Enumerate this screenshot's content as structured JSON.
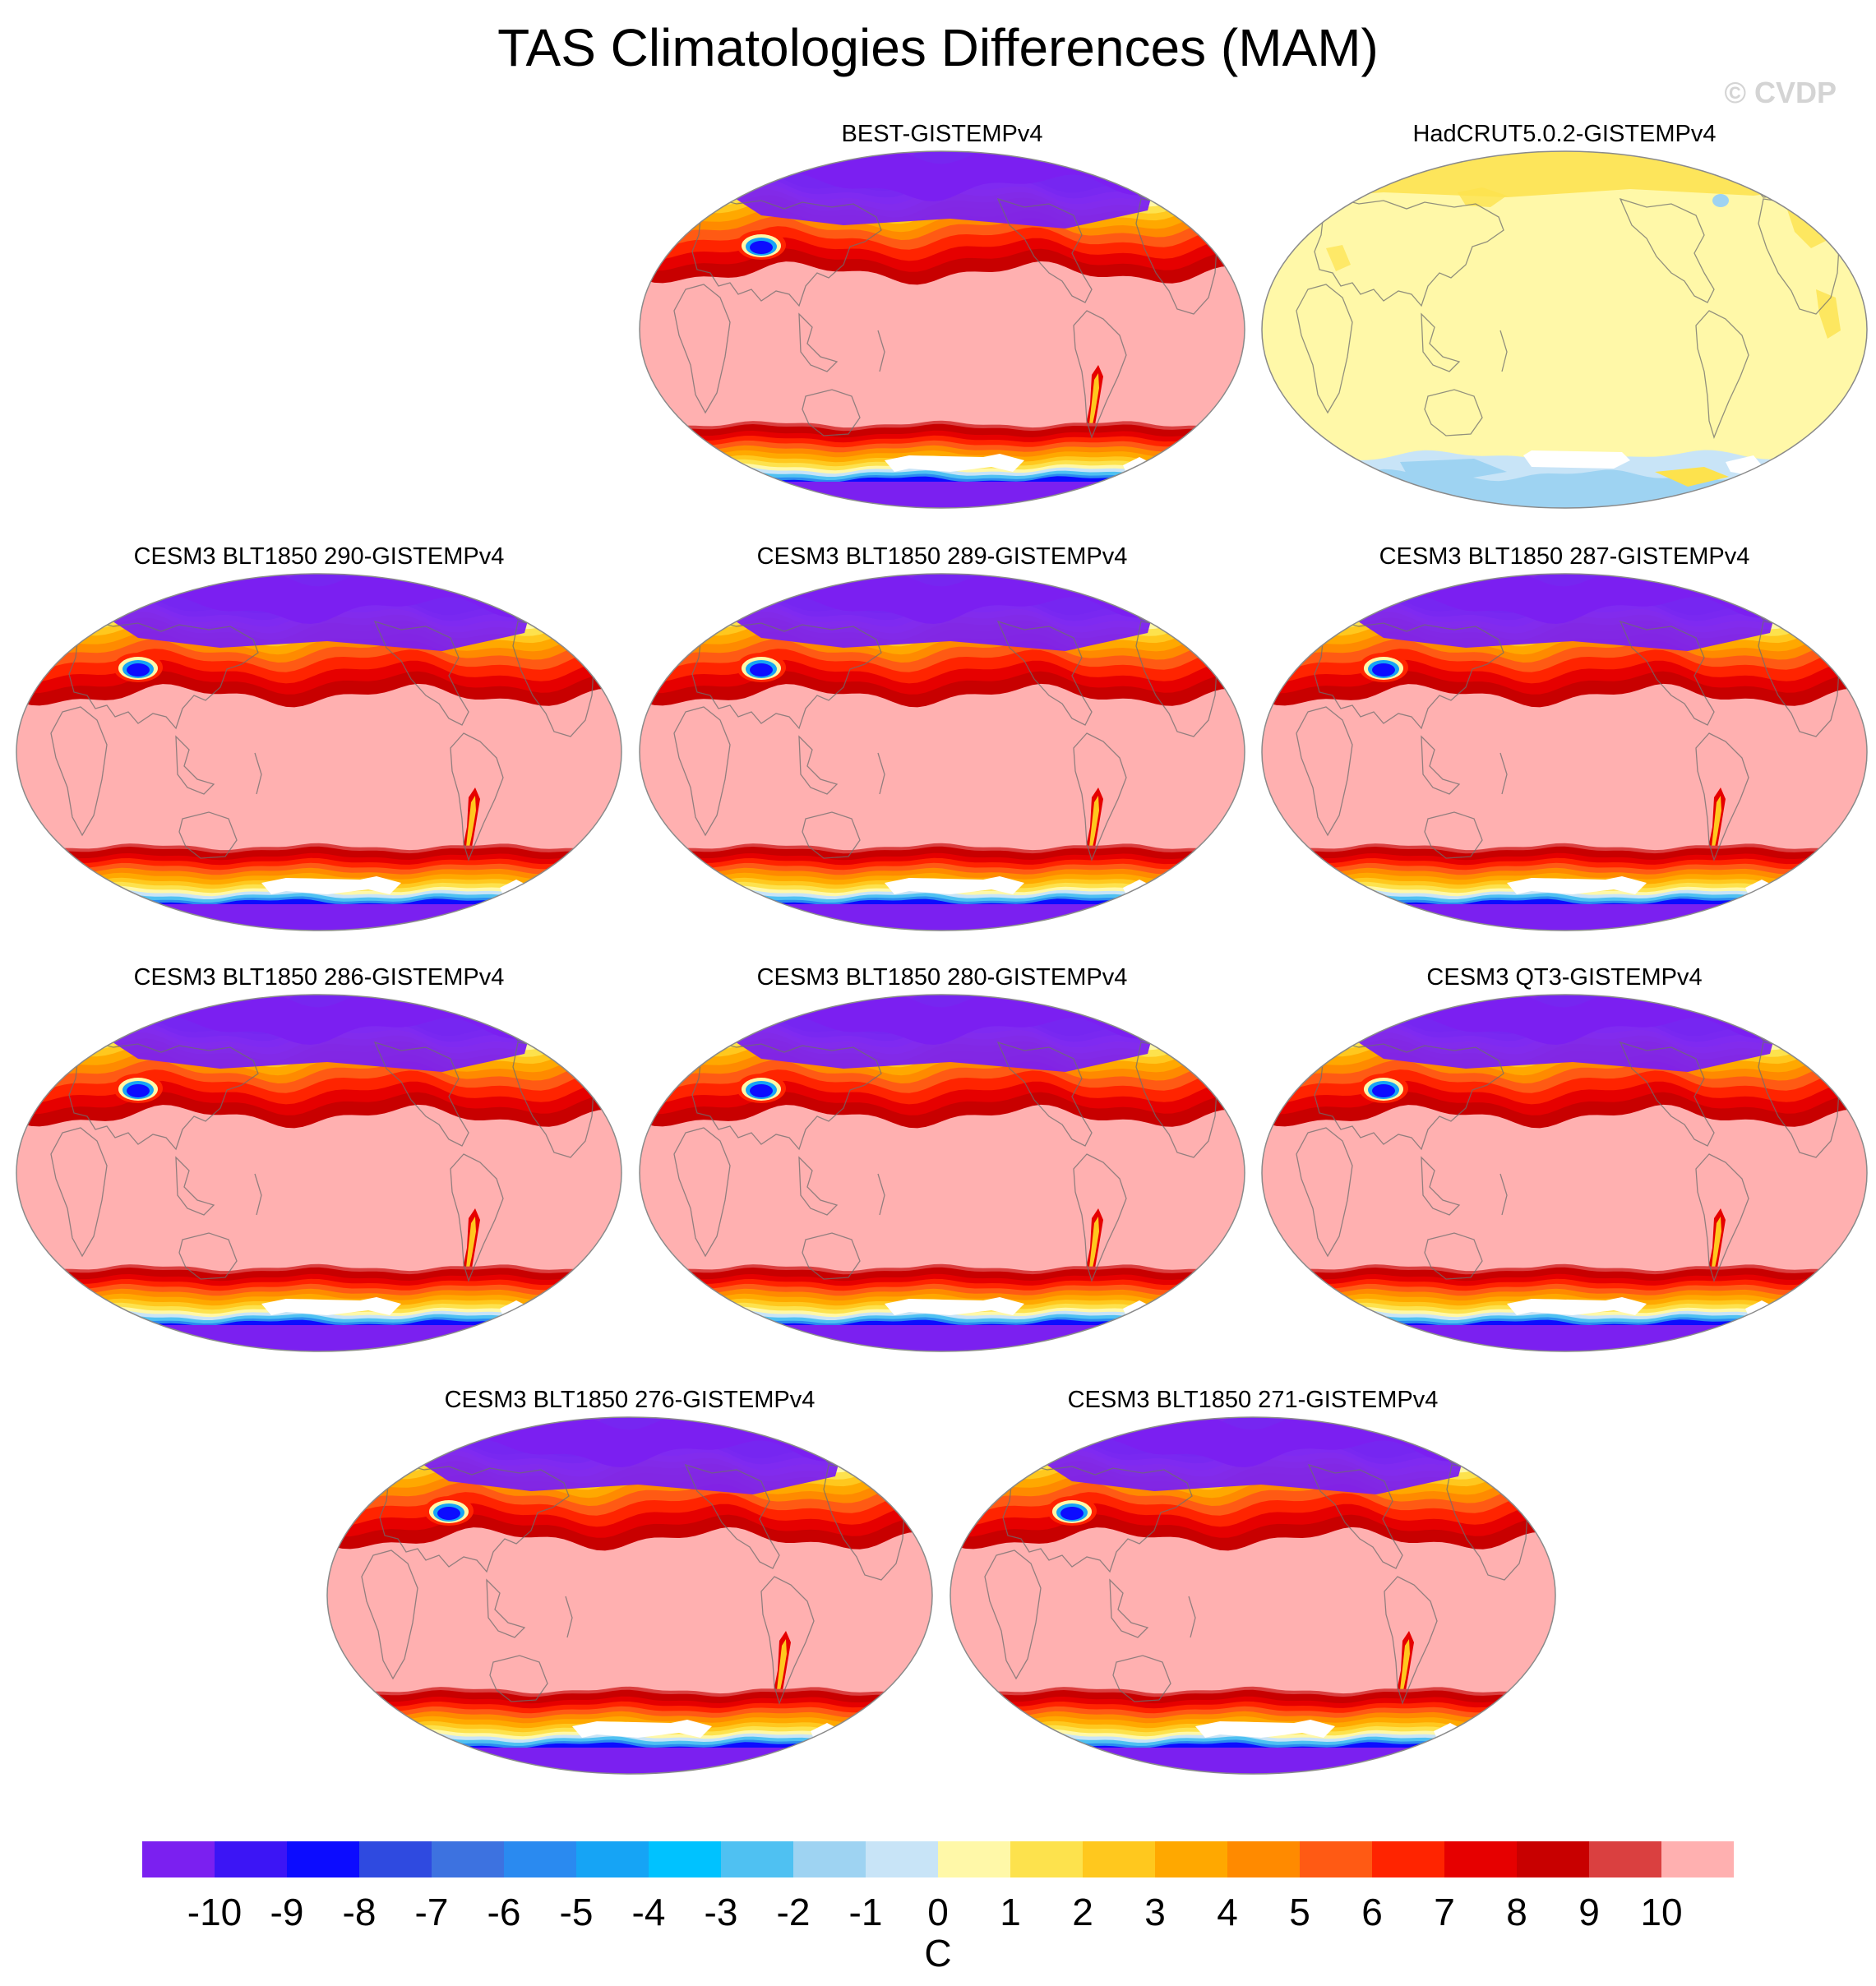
{
  "title": "TAS Climatologies Differences (MAM)",
  "watermark": "© CVDP",
  "chart_data": {
    "type": "heatmap",
    "variable": "TAS",
    "season": "MAM",
    "projection": "global map, Pacific-centered",
    "units": "C",
    "colorbar": {
      "tick_labels": [
        "-10",
        "-9",
        "-8",
        "-7",
        "-6",
        "-5",
        "-4",
        "-3",
        "-2",
        "-1",
        "0",
        "1",
        "2",
        "3",
        "4",
        "5",
        "6",
        "7",
        "8",
        "9",
        "10"
      ],
      "colors": [
        "#7b20f0",
        "#3c15f5",
        "#0c0cff",
        "#2f4ae0",
        "#3d72e0",
        "#2a8af0",
        "#16a4f5",
        "#00c2ff",
        "#4fc1f2",
        "#9ed3f2",
        "#c8e4f7",
        "#fff8a8",
        "#fde24d",
        "#ffc81e",
        "#ffa800",
        "#ff8a00",
        "#ff5a14",
        "#ff2400",
        "#e60000",
        "#c80000",
        "#da4040",
        "#ffb0b0"
      ]
    },
    "panels": [
      {
        "label": "BEST-GISTEMPv4",
        "pattern": "strong"
      },
      {
        "label": "HadCRUT5.0.2-GISTEMPv4",
        "pattern": "weak"
      },
      {
        "label": "CESM3 BLT1850 290-GISTEMPv4",
        "pattern": "strong"
      },
      {
        "label": "CESM3 BLT1850 289-GISTEMPv4",
        "pattern": "strong"
      },
      {
        "label": "CESM3 BLT1850 287-GISTEMPv4",
        "pattern": "strong"
      },
      {
        "label": "CESM3 BLT1850 286-GISTEMPv4",
        "pattern": "strong"
      },
      {
        "label": "CESM3 BLT1850 280-GISTEMPv4",
        "pattern": "strong"
      },
      {
        "label": "CESM3 QT3-GISTEMPv4",
        "pattern": "strong"
      },
      {
        "label": "CESM3 BLT1850 276-GISTEMPv4",
        "pattern": "strong"
      },
      {
        "label": "CESM3 BLT1850 271-GISTEMPv4",
        "pattern": "strong"
      }
    ]
  }
}
